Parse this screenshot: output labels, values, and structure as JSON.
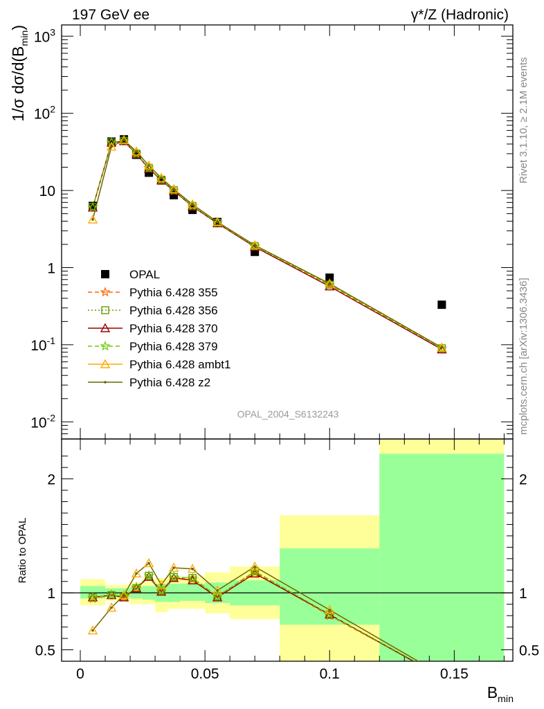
{
  "header": {
    "left": "197 GeV ee",
    "right": "γ*/Z (Hadronic)"
  },
  "side_text": {
    "rivet": "Rivet 3.1.10, ≥ 2.1M events",
    "mcplots": "mcplots.cern.ch [arXiv:1306.3436]"
  },
  "watermark": "OPAL_2004_S6132243",
  "colors": {
    "band_inner": "#99ff99",
    "band_outer": "#ffff99",
    "opal": "#000000",
    "p355": "#ff6600",
    "p356": "#669900",
    "p370": "#990000",
    "p379": "#66cc00",
    "ambt1": "#ffaa00",
    "z2": "#666600"
  },
  "chart_data": [
    {
      "type": "scatter",
      "panel": "main",
      "ylabel": "1/σ dσ/d(B_min)",
      "yscale": "log",
      "ylim": [
        0.006,
        1400
      ],
      "xlim": [
        -0.0075,
        0.1735
      ],
      "y_ticks": [
        {
          "v": 0.01,
          "b": "10",
          "e": "-2"
        },
        {
          "v": 0.1,
          "b": "10",
          "e": "-1"
        },
        {
          "v": 1,
          "b": "1",
          "e": ""
        },
        {
          "v": 10,
          "b": "10",
          "e": ""
        },
        {
          "v": 100,
          "b": "10",
          "e": "2"
        },
        {
          "v": 1000,
          "b": "10",
          "e": "3"
        }
      ],
      "legend_position": "left-middle",
      "series": [
        {
          "name": "OPAL",
          "color_key": "opal",
          "marker": "square",
          "line": "none",
          "x": [
            0.005,
            0.0125,
            0.0175,
            0.0225,
            0.0275,
            0.0325,
            0.0375,
            0.045,
            0.055,
            0.07,
            0.1,
            0.145
          ],
          "y": [
            6.3,
            43,
            46,
            29,
            17,
            13.5,
            8.7,
            5.6,
            3.9,
            1.6,
            0.74,
            0.33
          ]
        },
        {
          "name": "Pythia 6.428 355",
          "color_key": "p355",
          "marker": "star",
          "line": "dash",
          "x": [
            0.005,
            0.0125,
            0.0175,
            0.0225,
            0.0275,
            0.0325,
            0.0375,
            0.045,
            0.055,
            0.07,
            0.1,
            0.145
          ],
          "y": [
            6.0,
            42,
            44,
            30,
            19.5,
            13.7,
            10.0,
            6.3,
            3.8,
            1.88,
            0.59,
            0.089
          ]
        },
        {
          "name": "Pythia 6.428 356",
          "color_key": "p356",
          "marker": "open-square",
          "line": "dot",
          "x": [
            0.005,
            0.0125,
            0.0175,
            0.0225,
            0.0275,
            0.0325,
            0.0375,
            0.045,
            0.055,
            0.07,
            0.1,
            0.145
          ],
          "y": [
            6.1,
            42,
            44,
            30,
            19.6,
            13.8,
            10.1,
            6.3,
            3.8,
            1.9,
            0.6,
            0.09
          ]
        },
        {
          "name": "Pythia 6.428 370",
          "color_key": "p370",
          "marker": "open-triangle",
          "line": "solid",
          "x": [
            0.005,
            0.0125,
            0.0175,
            0.0225,
            0.0275,
            0.0325,
            0.0375,
            0.045,
            0.055,
            0.07,
            0.1,
            0.145
          ],
          "y": [
            6.0,
            41.5,
            43.5,
            29.5,
            19.2,
            13.5,
            9.9,
            6.2,
            3.75,
            1.85,
            0.57,
            0.087
          ]
        },
        {
          "name": "Pythia 6.428 379",
          "color_key": "p379",
          "marker": "star",
          "line": "dash",
          "x": [
            0.005,
            0.0125,
            0.0175,
            0.0225,
            0.0275,
            0.0325,
            0.0375,
            0.045,
            0.055,
            0.07,
            0.1,
            0.145
          ],
          "y": [
            6.05,
            42,
            44,
            30,
            19.5,
            13.8,
            10.0,
            6.3,
            3.8,
            1.9,
            0.6,
            0.09
          ]
        },
        {
          "name": "Pythia 6.428 ambt1",
          "color_key": "ambt1",
          "marker": "open-triangle",
          "line": "solid",
          "x": [
            0.005,
            0.0125,
            0.0175,
            0.0225,
            0.0275,
            0.0325,
            0.0375,
            0.045,
            0.055,
            0.07,
            0.1,
            0.145
          ],
          "y": [
            4.2,
            37,
            45,
            32,
            21,
            14.5,
            10.4,
            6.6,
            3.9,
            1.95,
            0.62,
            0.092
          ]
        },
        {
          "name": "Pythia 6.428 z2",
          "color_key": "z2",
          "marker": "dot",
          "line": "solid",
          "x": [
            0.005,
            0.0125,
            0.0175,
            0.0225,
            0.0275,
            0.0325,
            0.0375,
            0.045,
            0.055,
            0.07,
            0.1,
            0.145
          ],
          "y": [
            4.2,
            37,
            45,
            32,
            21,
            14.5,
            10.4,
            6.6,
            3.9,
            1.95,
            0.62,
            0.092
          ]
        }
      ]
    },
    {
      "type": "line",
      "panel": "ratio",
      "ylabel": "Ratio to OPAL",
      "xlabel": "B_min",
      "ylim": [
        0.4,
        2.35
      ],
      "xlim": [
        -0.0075,
        0.1735
      ],
      "x_ticks": [
        {
          "v": 0,
          "label": "0"
        },
        {
          "v": 0.05,
          "label": "0.05"
        },
        {
          "v": 0.1,
          "label": "0.1"
        },
        {
          "v": 0.15,
          "label": "0.15"
        }
      ],
      "y_ticks": [
        {
          "v": 0.5,
          "label": "0.5"
        },
        {
          "v": 1,
          "label": "1"
        },
        {
          "v": 2,
          "label": "2"
        }
      ],
      "bands": [
        {
          "x0": 0.0,
          "x1": 0.01,
          "inner": [
            0.95,
            1.06
          ],
          "outer": [
            0.89,
            1.12
          ]
        },
        {
          "x0": 0.01,
          "x1": 0.015,
          "inner": [
            0.96,
            1.04
          ],
          "outer": [
            0.93,
            1.07
          ]
        },
        {
          "x0": 0.015,
          "x1": 0.02,
          "inner": [
            0.96,
            1.04
          ],
          "outer": [
            0.93,
            1.07
          ]
        },
        {
          "x0": 0.02,
          "x1": 0.025,
          "inner": [
            0.95,
            1.05
          ],
          "outer": [
            0.9,
            1.09
          ]
        },
        {
          "x0": 0.025,
          "x1": 0.03,
          "inner": [
            0.94,
            1.06
          ],
          "outer": [
            0.9,
            1.1
          ]
        },
        {
          "x0": 0.03,
          "x1": 0.035,
          "inner": [
            0.92,
            1.08
          ],
          "outer": [
            0.83,
            1.13
          ]
        },
        {
          "x0": 0.035,
          "x1": 0.04,
          "inner": [
            0.92,
            1.08
          ],
          "outer": [
            0.86,
            1.14
          ]
        },
        {
          "x0": 0.04,
          "x1": 0.05,
          "inner": [
            0.93,
            1.08
          ],
          "outer": [
            0.86,
            1.14
          ]
        },
        {
          "x0": 0.05,
          "x1": 0.06,
          "inner": [
            0.91,
            1.09
          ],
          "outer": [
            0.82,
            1.18
          ]
        },
        {
          "x0": 0.06,
          "x1": 0.08,
          "inner": [
            0.89,
            1.11
          ],
          "outer": [
            0.77,
            1.23
          ]
        },
        {
          "x0": 0.08,
          "x1": 0.12,
          "inner": [
            0.72,
            1.39
          ],
          "outer": [
            0.4,
            1.68
          ]
        },
        {
          "x0": 0.12,
          "x1": 0.17,
          "inner": [
            0.4,
            2.22
          ],
          "outer": [
            0.4,
            2.35
          ]
        }
      ],
      "series": [
        {
          "name": "Pythia 6.428 355",
          "color_key": "p355",
          "marker": "star",
          "line": "dash",
          "x": [
            0.005,
            0.0125,
            0.0175,
            0.0225,
            0.0275,
            0.0325,
            0.0375,
            0.045,
            0.055,
            0.07,
            0.1,
            0.145
          ],
          "y": [
            0.95,
            0.98,
            0.96,
            1.04,
            1.15,
            1.01,
            1.13,
            1.12,
            0.97,
            1.18,
            0.8,
            0.27
          ]
        },
        {
          "name": "Pythia 6.428 356",
          "color_key": "p356",
          "marker": "open-square",
          "line": "dot",
          "x": [
            0.005,
            0.0125,
            0.0175,
            0.0225,
            0.0275,
            0.0325,
            0.0375,
            0.045,
            0.055,
            0.07,
            0.1,
            0.145
          ],
          "y": [
            0.96,
            0.98,
            0.96,
            1.04,
            1.15,
            1.02,
            1.14,
            1.13,
            0.97,
            1.19,
            0.81,
            0.27
          ]
        },
        {
          "name": "Pythia 6.428 370",
          "color_key": "p370",
          "marker": "open-triangle",
          "line": "solid",
          "x": [
            0.005,
            0.0125,
            0.0175,
            0.0225,
            0.0275,
            0.0325,
            0.0375,
            0.045,
            0.055,
            0.07,
            0.1,
            0.145
          ],
          "y": [
            0.96,
            0.98,
            0.96,
            1.04,
            1.14,
            1.01,
            1.13,
            1.11,
            0.96,
            1.17,
            0.81,
            0.26
          ]
        },
        {
          "name": "Pythia 6.428 379",
          "color_key": "p379",
          "marker": "star",
          "line": "dash",
          "x": [
            0.005,
            0.0125,
            0.0175,
            0.0225,
            0.0275,
            0.0325,
            0.0375,
            0.045,
            0.055,
            0.07,
            0.1,
            0.145
          ],
          "y": [
            0.96,
            0.98,
            0.97,
            1.05,
            1.15,
            1.02,
            1.14,
            1.13,
            0.97,
            1.19,
            0.81,
            0.27
          ]
        },
        {
          "name": "Pythia 6.428 ambt1",
          "color_key": "ambt1",
          "marker": "open-triangle",
          "line": "solid",
          "x": [
            0.005,
            0.0125,
            0.0175,
            0.0225,
            0.0275,
            0.0325,
            0.0375,
            0.045,
            0.055,
            0.07,
            0.1,
            0.145
          ],
          "y": [
            0.67,
            0.87,
            0.98,
            1.17,
            1.26,
            1.07,
            1.22,
            1.21,
            1.02,
            1.23,
            0.85,
            0.28
          ]
        },
        {
          "name": "Pythia 6.428 z2",
          "color_key": "z2",
          "marker": "dot",
          "line": "solid",
          "x": [
            0.005,
            0.0125,
            0.0175,
            0.0225,
            0.0275,
            0.0325,
            0.0375,
            0.045,
            0.055,
            0.07,
            0.1,
            0.145
          ],
          "y": [
            0.67,
            0.87,
            0.98,
            1.17,
            1.26,
            1.07,
            1.22,
            1.21,
            1.02,
            1.23,
            0.85,
            0.28
          ]
        }
      ]
    }
  ]
}
